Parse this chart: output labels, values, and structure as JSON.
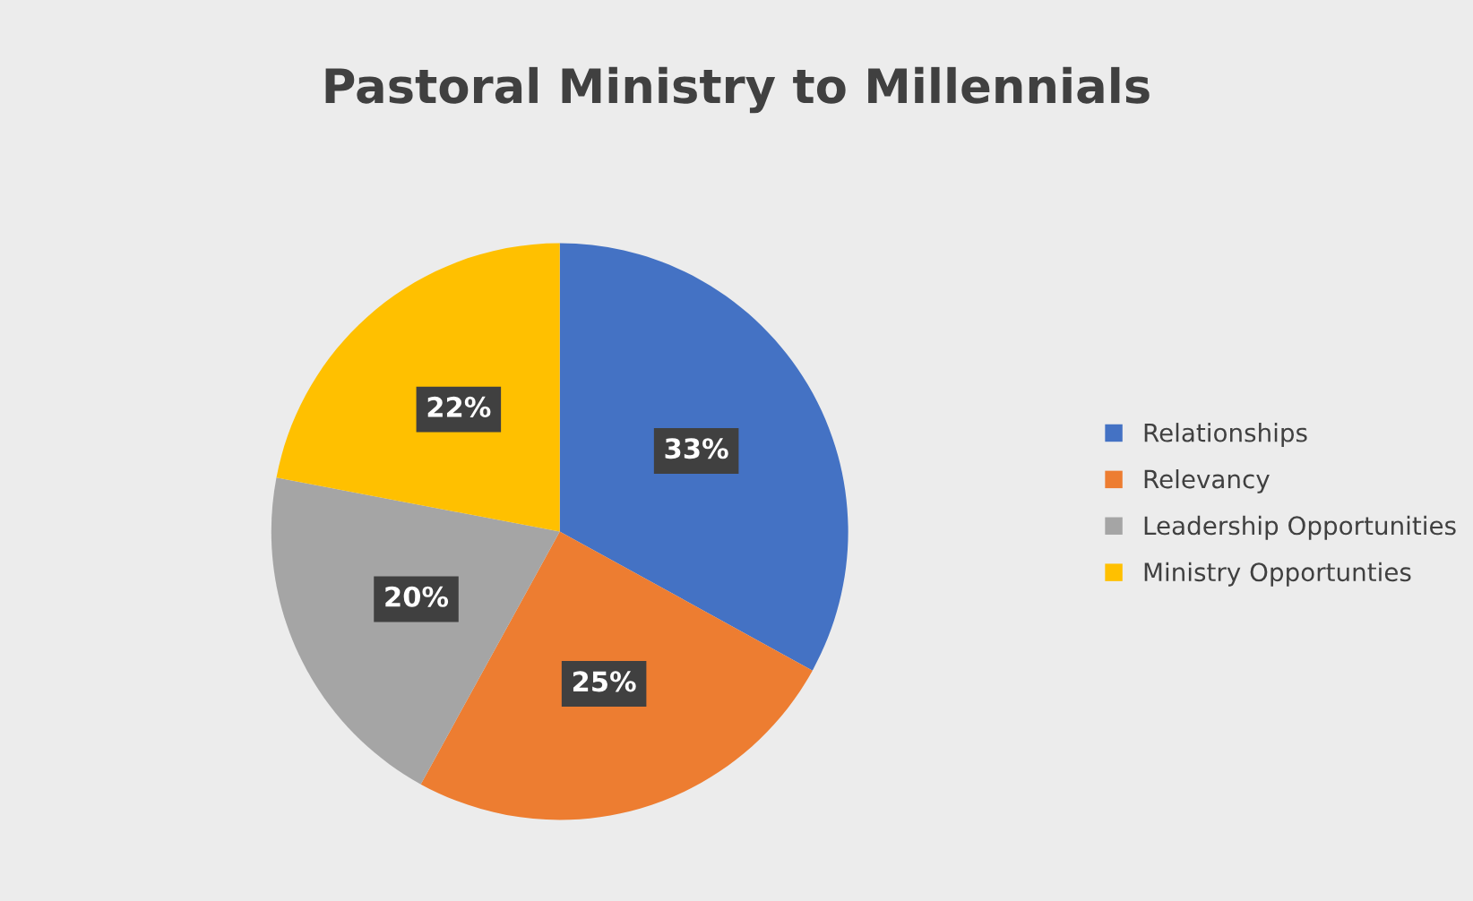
{
  "chart_data": {
    "type": "pie",
    "title": "Pastoral Ministry to Millennials",
    "categories": [
      "Relationships",
      "Relevancy",
      "Leadership Opportunities",
      "Ministry Opportunties"
    ],
    "values": [
      33,
      25,
      20,
      22
    ],
    "colors": [
      "#4472c4",
      "#ed7d31",
      "#a5a5a5",
      "#ffc000"
    ],
    "value_labels": [
      "33%",
      "25%",
      "20%",
      "22%"
    ],
    "legend": "right"
  }
}
